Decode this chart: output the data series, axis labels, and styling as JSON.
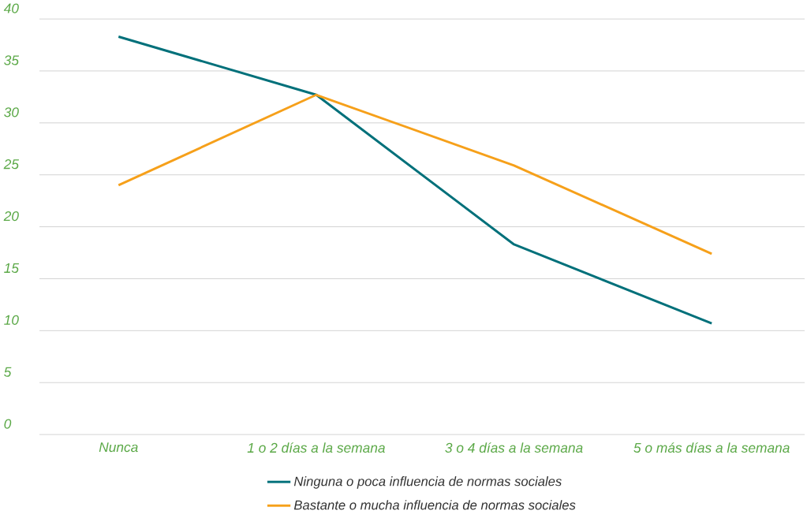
{
  "chart_data": {
    "type": "line",
    "categories": [
      "Nunca",
      "1 o 2 días a la semana",
      "3 o 4 días a la semana",
      "5 o más días a la semana"
    ],
    "series": [
      {
        "name": "Ninguna o poca influencia de normas sociales",
        "color": "#00707a",
        "values": [
          38.3,
          32.7,
          18.3,
          10.7
        ]
      },
      {
        "name": "Bastante o mucha influencia de normas sociales",
        "color": "#f6a01a",
        "values": [
          24.0,
          32.7,
          25.9,
          17.4
        ]
      }
    ],
    "ylim": [
      0,
      40
    ],
    "yticks": [
      0,
      5,
      10,
      15,
      20,
      25,
      30,
      35,
      40
    ],
    "grid": "y",
    "legend": "bottom",
    "marker": "none",
    "line_style": "solid"
  }
}
